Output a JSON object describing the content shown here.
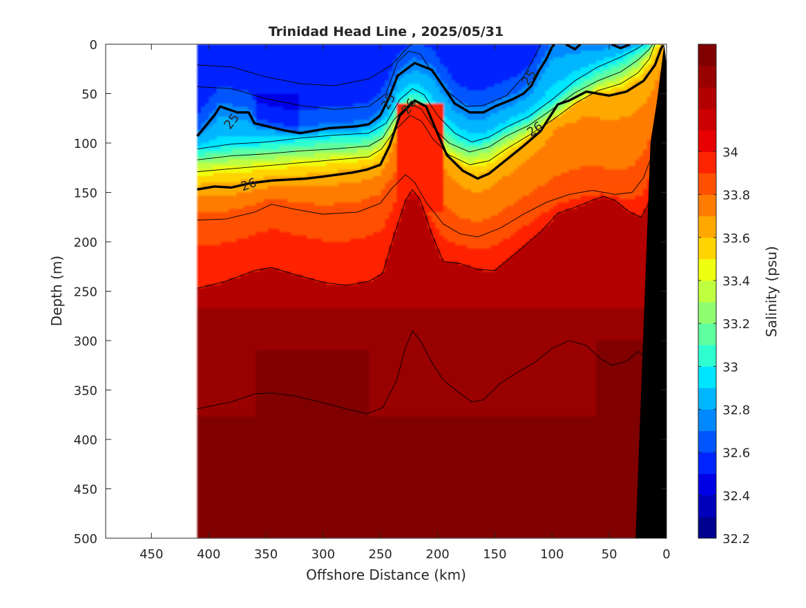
{
  "chart_data": {
    "type": "contour",
    "title": "Trinidad Head Line , 2025/05/31",
    "xlabel": "Offshore Distance (km)",
    "ylabel": "Depth (m)",
    "colorbar_label": "Salinity (psu)",
    "xlim": [
      490,
      0
    ],
    "ylim": [
      0,
      500
    ],
    "x_reversed": true,
    "y_reversed": true,
    "x_ticks": [
      450,
      400,
      350,
      300,
      250,
      200,
      150,
      100,
      50,
      0
    ],
    "y_ticks": [
      0,
      50,
      100,
      150,
      200,
      250,
      300,
      350,
      400,
      450,
      500
    ],
    "colorbar": {
      "range": [
        32.2,
        34.5
      ],
      "tick_values": [
        32.2,
        32.4,
        32.6,
        32.8,
        33,
        33.2,
        33.4,
        33.6,
        33.8,
        34
      ],
      "tick_labels": [
        "32.2",
        "32.4",
        "32.6",
        "32.8",
        "33",
        "33.2",
        "33.4",
        "33.6",
        "33.8",
        "34"
      ],
      "levels": [
        32.2,
        32.3,
        32.4,
        32.5,
        32.6,
        32.7,
        32.8,
        32.9,
        33.0,
        33.1,
        33.2,
        33.3,
        33.4,
        33.5,
        33.6,
        33.7,
        33.8,
        33.9,
        34.0,
        34.1,
        34.2,
        34.3,
        34.4,
        34.5
      ],
      "colors": [
        "#00008f",
        "#0000bb",
        "#0000e5",
        "#0024ff",
        "#0055ff",
        "#0088ff",
        "#00b6ff",
        "#00e5ff",
        "#2fffd0",
        "#5fffa0",
        "#8fff70",
        "#bfff40",
        "#efff10",
        "#ffd400",
        "#ffa800",
        "#ff7c00",
        "#ff5000",
        "#ff2400",
        "#e60000",
        "#cc0000",
        "#b30000",
        "#990000",
        "#800000"
      ]
    },
    "data_coverage_km": [
      0,
      410
    ],
    "bathymetry_color": "#000000",
    "isopycnals": [
      {
        "label": "25",
        "emphasis": "bold",
        "points": [
          [
            410,
            93
          ],
          [
            395,
            72
          ],
          [
            390,
            63
          ],
          [
            375,
            69
          ],
          [
            365,
            69
          ],
          [
            360,
            80
          ],
          [
            335,
            87
          ],
          [
            320,
            90
          ],
          [
            295,
            85
          ],
          [
            270,
            83
          ],
          [
            260,
            81
          ],
          [
            250,
            72
          ],
          [
            242,
            53
          ],
          [
            235,
            32
          ],
          [
            220,
            19
          ],
          [
            205,
            26
          ],
          [
            195,
            43
          ],
          [
            185,
            60
          ],
          [
            172,
            69
          ],
          [
            160,
            69
          ],
          [
            150,
            63
          ],
          [
            135,
            56
          ],
          [
            125,
            50
          ],
          [
            118,
            42
          ],
          [
            112,
            28
          ],
          [
            105,
            15
          ],
          [
            100,
            3
          ],
          [
            98,
            0
          ]
        ]
      },
      {
        "label": "25",
        "emphasis": "bold",
        "points": [
          [
            88,
            0
          ],
          [
            80,
            5
          ],
          [
            75,
            0
          ]
        ]
      },
      {
        "label": "25",
        "emphasis": "bold",
        "points": [
          [
            48,
            0
          ],
          [
            40,
            4
          ],
          [
            32,
            0
          ]
        ]
      },
      {
        "label": "26",
        "emphasis": "bold",
        "points": [
          [
            410,
            147
          ],
          [
            395,
            144
          ],
          [
            380,
            145
          ],
          [
            365,
            141
          ],
          [
            345,
            138
          ],
          [
            330,
            137
          ],
          [
            315,
            136
          ],
          [
            300,
            134
          ],
          [
            275,
            130
          ],
          [
            262,
            127
          ],
          [
            250,
            122
          ],
          [
            242,
            103
          ],
          [
            233,
            72
          ],
          [
            220,
            57
          ],
          [
            210,
            63
          ],
          [
            202,
            85
          ],
          [
            192,
            112
          ],
          [
            178,
            128
          ],
          [
            165,
            136
          ],
          [
            155,
            131
          ],
          [
            140,
            117
          ],
          [
            125,
            103
          ],
          [
            110,
            88
          ],
          [
            95,
            61
          ],
          [
            85,
            57
          ],
          [
            70,
            48
          ],
          [
            50,
            52
          ],
          [
            35,
            48
          ],
          [
            20,
            37
          ],
          [
            10,
            21
          ],
          [
            5,
            5
          ],
          [
            3,
            1
          ]
        ]
      },
      {
        "label": "",
        "emphasis": "thin",
        "points": [
          [
            410,
            21
          ],
          [
            380,
            23
          ],
          [
            350,
            33
          ],
          [
            320,
            40
          ],
          [
            290,
            42
          ],
          [
            260,
            35
          ],
          [
            240,
            21
          ],
          [
            225,
            2
          ],
          [
            222,
            0
          ]
        ]
      },
      {
        "label": "",
        "emphasis": "thin",
        "points": [
          [
            410,
            43
          ],
          [
            380,
            45
          ],
          [
            350,
            55
          ],
          [
            320,
            62
          ],
          [
            290,
            66
          ],
          [
            260,
            63
          ],
          [
            245,
            50
          ],
          [
            235,
            18
          ],
          [
            225,
            7
          ],
          [
            215,
            10
          ],
          [
            205,
            28
          ],
          [
            190,
            49
          ],
          [
            175,
            63
          ],
          [
            160,
            62
          ],
          [
            140,
            52
          ],
          [
            125,
            33
          ],
          [
            115,
            12
          ],
          [
            110,
            0
          ]
        ]
      },
      {
        "label": "",
        "emphasis": "thin",
        "points": [
          [
            410,
            106
          ],
          [
            380,
            101
          ],
          [
            350,
            99
          ],
          [
            320,
            95
          ],
          [
            290,
            92
          ],
          [
            260,
            90
          ],
          [
            245,
            80
          ],
          [
            233,
            56
          ],
          [
            222,
            45
          ],
          [
            212,
            51
          ],
          [
            200,
            72
          ],
          [
            185,
            90
          ],
          [
            170,
            99
          ],
          [
            155,
            94
          ],
          [
            140,
            84
          ],
          [
            120,
            73
          ],
          [
            100,
            56
          ],
          [
            80,
            37
          ],
          [
            60,
            23
          ],
          [
            40,
            13
          ],
          [
            25,
            4
          ],
          [
            20,
            0
          ]
        ]
      },
      {
        "label": "",
        "emphasis": "thin",
        "points": [
          [
            410,
            117
          ],
          [
            380,
            113
          ],
          [
            350,
            111
          ],
          [
            320,
            108
          ],
          [
            290,
            106
          ],
          [
            260,
            103
          ],
          [
            248,
            95
          ],
          [
            238,
            76
          ],
          [
            224,
            60
          ],
          [
            214,
            66
          ],
          [
            204,
            84
          ],
          [
            190,
            100
          ],
          [
            172,
            109
          ],
          [
            155,
            104
          ],
          [
            140,
            93
          ],
          [
            120,
            82
          ],
          [
            100,
            66
          ],
          [
            80,
            49
          ],
          [
            60,
            37
          ],
          [
            40,
            28
          ],
          [
            25,
            16
          ],
          [
            15,
            5
          ],
          [
            12,
            0
          ]
        ]
      },
      {
        "label": "",
        "emphasis": "thin",
        "points": [
          [
            410,
            129
          ],
          [
            380,
            126
          ],
          [
            350,
            123
          ],
          [
            320,
            120
          ],
          [
            290,
            117
          ],
          [
            260,
            114
          ],
          [
            249,
            106
          ],
          [
            238,
            88
          ],
          [
            224,
            72
          ],
          [
            214,
            78
          ],
          [
            204,
            96
          ],
          [
            190,
            112
          ],
          [
            172,
            122
          ],
          [
            155,
            118
          ],
          [
            140,
            106
          ],
          [
            120,
            92
          ],
          [
            100,
            77
          ],
          [
            80,
            60
          ],
          [
            60,
            47
          ],
          [
            40,
            40
          ],
          [
            25,
            29
          ],
          [
            15,
            15
          ],
          [
            10,
            0
          ]
        ]
      },
      {
        "label": "",
        "emphasis": "thin",
        "points": [
          [
            410,
            178
          ],
          [
            385,
            177
          ],
          [
            360,
            170
          ],
          [
            345,
            162
          ],
          [
            325,
            167
          ],
          [
            300,
            172
          ],
          [
            270,
            170
          ],
          [
            250,
            161
          ],
          [
            240,
            146
          ],
          [
            228,
            132
          ],
          [
            220,
            140
          ],
          [
            210,
            160
          ],
          [
            195,
            182
          ],
          [
            180,
            192
          ],
          [
            165,
            195
          ],
          [
            145,
            186
          ],
          [
            125,
            172
          ],
          [
            105,
            160
          ],
          [
            85,
            152
          ],
          [
            65,
            148
          ],
          [
            45,
            152
          ],
          [
            30,
            150
          ],
          [
            20,
            135
          ],
          [
            12,
            110
          ],
          [
            8,
            90
          ]
        ]
      },
      {
        "label": "",
        "emphasis": "thin",
        "points": [
          [
            410,
            247
          ],
          [
            385,
            240
          ],
          [
            360,
            229
          ],
          [
            345,
            226
          ],
          [
            325,
            233
          ],
          [
            300,
            241
          ],
          [
            280,
            244
          ],
          [
            260,
            240
          ],
          [
            248,
            232
          ],
          [
            238,
            193
          ],
          [
            228,
            158
          ],
          [
            222,
            147
          ],
          [
            215,
            158
          ],
          [
            205,
            192
          ],
          [
            195,
            220
          ],
          [
            180,
            222
          ],
          [
            165,
            228
          ],
          [
            150,
            229
          ],
          [
            130,
            210
          ],
          [
            110,
            190
          ],
          [
            95,
            171
          ],
          [
            80,
            165
          ],
          [
            65,
            158
          ],
          [
            55,
            154
          ],
          [
            45,
            158
          ],
          [
            32,
            170
          ],
          [
            22,
            175
          ],
          [
            15,
            160
          ],
          [
            10,
            140
          ],
          [
            8,
            120
          ]
        ]
      },
      {
        "label": "",
        "emphasis": "thin",
        "points": [
          [
            410,
            369
          ],
          [
            380,
            362
          ],
          [
            360,
            354
          ],
          [
            345,
            353
          ],
          [
            325,
            356
          ],
          [
            300,
            363
          ],
          [
            280,
            369
          ],
          [
            262,
            374
          ],
          [
            248,
            368
          ],
          [
            236,
            341
          ],
          [
            228,
            307
          ],
          [
            222,
            290
          ],
          [
            215,
            300
          ],
          [
            205,
            322
          ],
          [
            195,
            340
          ],
          [
            182,
            352
          ],
          [
            170,
            362
          ],
          [
            160,
            360
          ],
          [
            145,
            343
          ],
          [
            130,
            332
          ],
          [
            115,
            322
          ],
          [
            100,
            308
          ],
          [
            85,
            300
          ],
          [
            70,
            305
          ],
          [
            58,
            318
          ],
          [
            48,
            325
          ],
          [
            35,
            321
          ],
          [
            25,
            311
          ],
          [
            15,
            320
          ]
        ]
      }
    ],
    "inline_labels": [
      {
        "text": "25",
        "x": 380,
        "y": 78,
        "angle": -52
      },
      {
        "text": "25",
        "x": 243,
        "y": 58,
        "angle": -60
      },
      {
        "text": "25",
        "x": 120,
        "y": 34,
        "angle": -55
      },
      {
        "text": "26",
        "x": 365,
        "y": 142,
        "angle": -20
      },
      {
        "text": "26",
        "x": 225,
        "y": 63,
        "angle": -55
      },
      {
        "text": "26",
        "x": 115,
        "y": 86,
        "angle": -35
      }
    ]
  }
}
